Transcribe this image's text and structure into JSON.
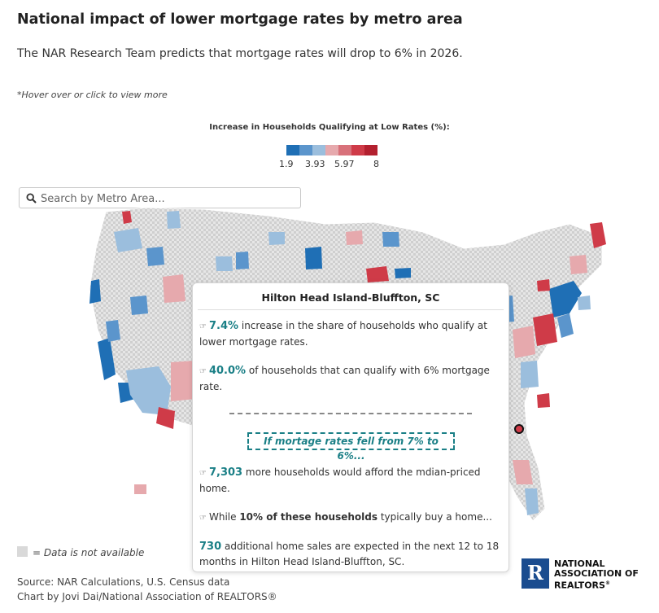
{
  "header": {
    "title": "National impact of lower mortgage rates by metro area",
    "subtitle": "The NAR Research Team predicts that mortgage rates will drop to 6% in 2026.",
    "hint": "*Hover over or click to view more"
  },
  "legend": {
    "title": "Increase in Households Qualifying at Low Rates (%):",
    "labels": [
      "1.9",
      "3.93",
      "5.97",
      "8"
    ],
    "colors": [
      "#1f6fb5",
      "#5b95cc",
      "#9bbedd",
      "#e6a9ad",
      "#d8717a",
      "#cf3b48",
      "#b3202f"
    ]
  },
  "search": {
    "placeholder": "Search by Metro Area..."
  },
  "tooltip": {
    "title": "Hilton Head Island-Bluffton, SC",
    "stat1_value": "7.4%",
    "stat1_text": "increase in the share of households who qualify at lower mortgage rates.",
    "stat2_value": "40.0%",
    "stat2_text": "of households that can qualify with 6% mortgage rate.",
    "callout": "If mortage rates fell from 7% to 6%...",
    "stat3_value": "7,303",
    "stat3_text": "more households would afford the mdian-priced home.",
    "stat4_prefix": "While",
    "stat4_bold": "10% of these households",
    "stat4_suffix": "typically buy a home...",
    "stat5_value": "730",
    "stat5_text": "additional home sales are expected in the next 12 to 18 months in Hilton Head Island-Bluffton, SC."
  },
  "footer": {
    "na_label": "= Data is not available",
    "source": "Source: NAR Calculations, U.S. Census data",
    "credit": "Chart by Jovi Dai/National Association of REALTORS®",
    "logo_line1": "NATIONAL",
    "logo_line2": "ASSOCIATION OF",
    "logo_line3": "REALTORS",
    "logo_mark": "R"
  },
  "map_colors": {
    "low": "#1f6fb5",
    "mid_low": "#8fb7db",
    "mid_high": "#e3a1a6",
    "high": "#cf3b48",
    "na": "#d9d9d9"
  }
}
